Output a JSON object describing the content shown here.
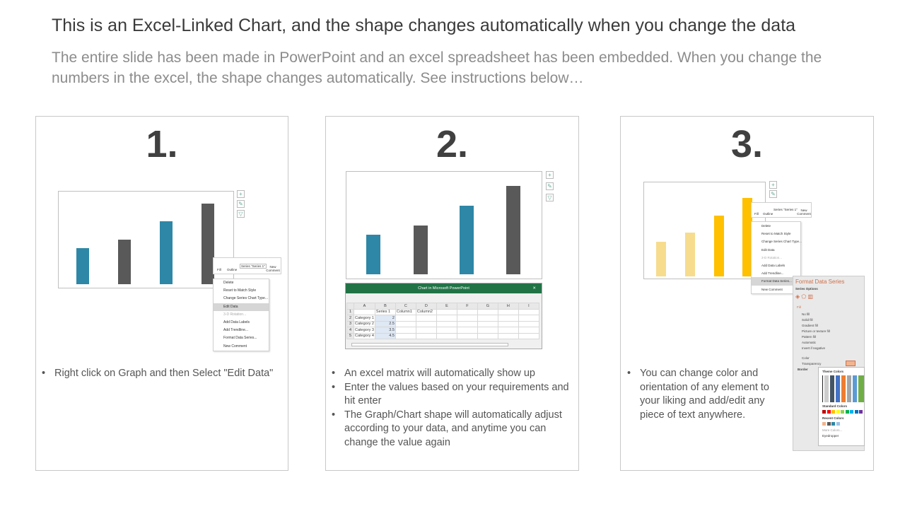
{
  "header": {
    "title": "This is an Excel-Linked Chart, and the shape changes automatically when you change the data",
    "subtitle": "The entire slide has been made in PowerPoint and an excel spreadsheet has been embedded. When you change the numbers in the excel, the shape changes automatically. See instructions below…"
  },
  "colors": {
    "teal": "#2e87a6",
    "dark": "#595959",
    "yellow": "#ffc000",
    "light_yellow": "#f7dc8e",
    "excel_green": "#217346",
    "accent": "#d0704a"
  },
  "panels": [
    {
      "number": "1.",
      "bullets": [
        "Right click on Graph and then Select \"Edit Data\""
      ]
    },
    {
      "number": "2.",
      "bullets": [
        "An excel matrix will automatically show up",
        "Enter the values based on your requirements and hit enter",
        "The Graph/Chart shape will automatically adjust according to your data, and anytime you can change the value again"
      ]
    },
    {
      "number": "3.",
      "bullets": [
        "You can change color and orientation of any element to your liking and add/edit any piece of text anywhere."
      ]
    }
  ],
  "chart_data": {
    "type": "bar",
    "categories": [
      "Category 1",
      "Category 2",
      "Category 3",
      "Category 4"
    ],
    "series": [
      {
        "name": "Series 1",
        "values": [
          2,
          2.5,
          3.5,
          4.5
        ]
      }
    ],
    "ylim": [
      0,
      4.5
    ]
  },
  "context_menu": {
    "mini_toolbar": {
      "fill": "Fill",
      "outline": "Outline",
      "series_select": "Series \"Series 1\"",
      "new_comment": "New Comment"
    },
    "items": [
      "Delete",
      "Reset to Match Style",
      "Change Series Chart Type...",
      "Edit Data",
      "3-D Rotation...",
      "Add Data Labels",
      "Add Trendline...",
      "Format Data Series...",
      "New Comment"
    ]
  },
  "excel": {
    "title": "Chart in Microsoft PowerPoint",
    "columns": [
      "",
      "A",
      "B",
      "C",
      "D",
      "E",
      "F",
      "G",
      "H",
      "I"
    ],
    "rows": [
      [
        "1",
        "",
        "Series 1",
        "Column1",
        "Column2",
        "",
        "",
        "",
        "",
        ""
      ],
      [
        "2",
        "Category 1",
        "2",
        "",
        "",
        "",
        "",
        "",
        "",
        ""
      ],
      [
        "3",
        "Category 2",
        "2.5",
        "",
        "",
        "",
        "",
        "",
        "",
        ""
      ],
      [
        "4",
        "Category 3",
        "3.5",
        "",
        "",
        "",
        "",
        "",
        "",
        ""
      ],
      [
        "5",
        "Category 4",
        "4.5",
        "",
        "",
        "",
        "",
        "",
        "",
        ""
      ]
    ]
  },
  "format_pane": {
    "title": "Format Data Series",
    "section": "Series Options",
    "group": "Fill",
    "options": [
      "No fill",
      "Solid fill",
      "Gradient fill",
      "Picture or texture fill",
      "Pattern fill",
      "Automatic",
      "Invert if negative"
    ],
    "color_label": "Color",
    "transparency_label": "Transparency",
    "border_label": "Border",
    "palette": {
      "theme": "Theme Colors",
      "standard": "Standard Colors",
      "recent": "Recent Colors",
      "more": "More Colors...",
      "eyedropper": "Eyedropper"
    }
  }
}
